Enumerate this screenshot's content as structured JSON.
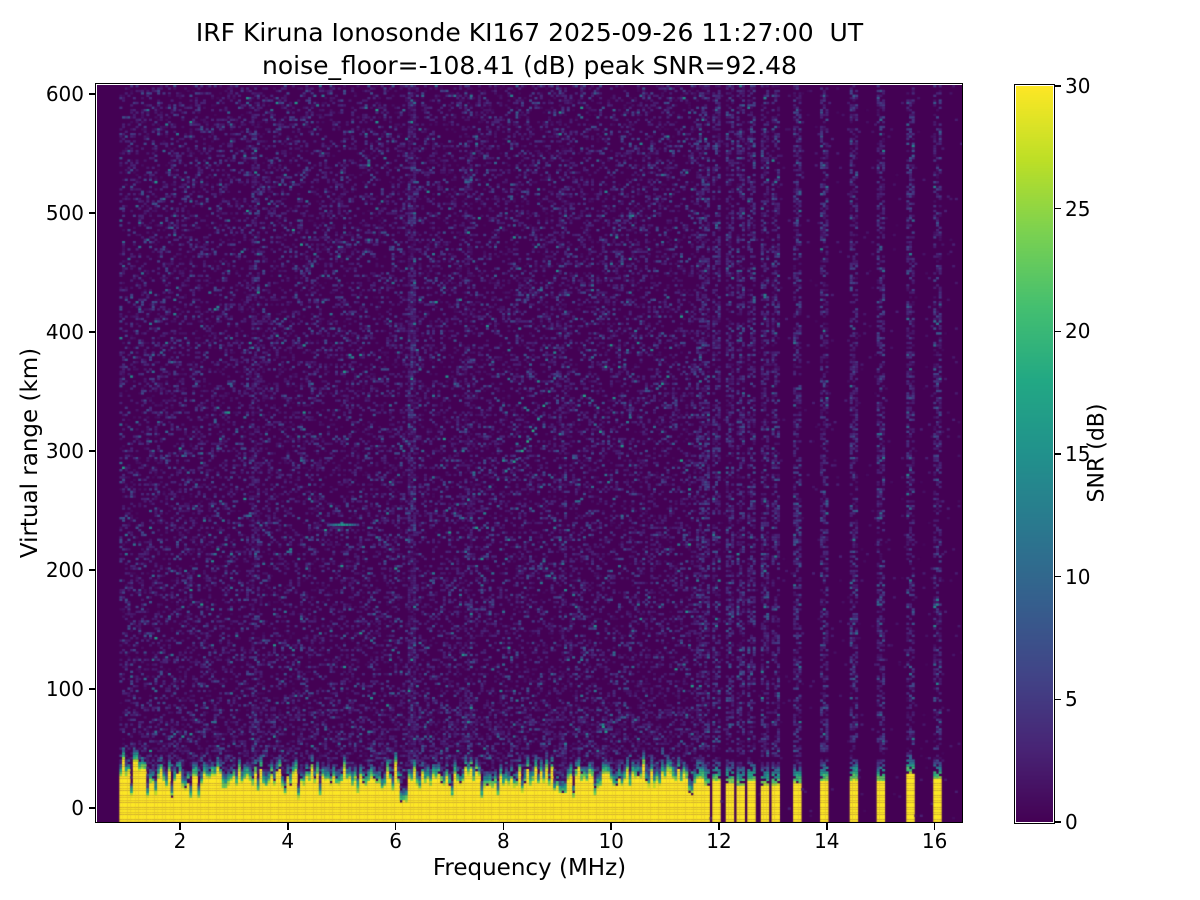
{
  "figure": {
    "title_line1": "IRF Kiruna Ionosonde KI167 2025-09-26 11:27:00  UT",
    "title_line2": "noise_floor=-108.41 (dB) peak SNR=92.48",
    "station": "IRF Kiruna Ionosonde KI167",
    "timestamp_ut": "2025-09-26 11:27:00",
    "noise_floor_db": -108.41,
    "peak_snr_db": 92.48
  },
  "chart_data": {
    "type": "heatmap",
    "title": "IRF Kiruna Ionosonde KI167 2025-09-26 11:27:00  UT",
    "subtitle": "noise_floor=-108.41 (dB) peak SNR=92.48",
    "xlabel": "Frequency (MHz)",
    "ylabel": "Virtual range (km)",
    "xlim": [
      0.46,
      16.51
    ],
    "ylim": [
      -12,
      607
    ],
    "x_ticks": [
      2,
      4,
      6,
      8,
      10,
      12,
      14,
      16
    ],
    "y_ticks": [
      0,
      100,
      200,
      300,
      400,
      500,
      600
    ],
    "grid": false,
    "colorbar": {
      "label": "SNR (dB)",
      "ticks": [
        0,
        5,
        10,
        15,
        20,
        25,
        30
      ],
      "vmin": 0,
      "vmax": 30,
      "colormap": "viridis",
      "stops": [
        "#440154",
        "#482475",
        "#414487",
        "#355f8d",
        "#2a788e",
        "#21918c",
        "#22a884",
        "#44bf70",
        "#7ad151",
        "#bddf26",
        "#fde725"
      ]
    },
    "sweep": {
      "freq_start_mhz": 0.9,
      "freq_stop_mhz": 16.5,
      "freq_step_mhz": 0.05
    },
    "ground_clutter": {
      "freq_range_mhz": [
        0.9,
        11.6
      ],
      "top_km_typical": [
        15,
        42
      ],
      "snr_db": 30
    },
    "rf_interference_channels_mhz": [
      11.65,
      11.75,
      11.95,
      12.2,
      12.4,
      12.6,
      12.85,
      13.05,
      13.45,
      13.95,
      14.5,
      15.0,
      15.55,
      16.05
    ],
    "noisy_columns_mhz": [
      3.4,
      6.3,
      7.35,
      9.1
    ],
    "echo_trace": {
      "horizontal_segment": {
        "freq_range_mhz": [
          4.75,
          5.3
        ],
        "range_km": 238,
        "snr_db": 14
      },
      "f_layer_points": [
        [
          6.95,
          250
        ],
        [
          7.15,
          255
        ],
        [
          7.35,
          259
        ],
        [
          7.55,
          264
        ],
        [
          7.75,
          270
        ],
        [
          7.9,
          276
        ],
        [
          8.05,
          283
        ],
        [
          8.2,
          291
        ],
        [
          8.35,
          300
        ],
        [
          8.45,
          308
        ],
        [
          8.55,
          317
        ],
        [
          8.65,
          327
        ],
        [
          8.75,
          338
        ],
        [
          8.85,
          350
        ],
        [
          8.95,
          361
        ]
      ],
      "typical_snr_db": 15
    }
  }
}
